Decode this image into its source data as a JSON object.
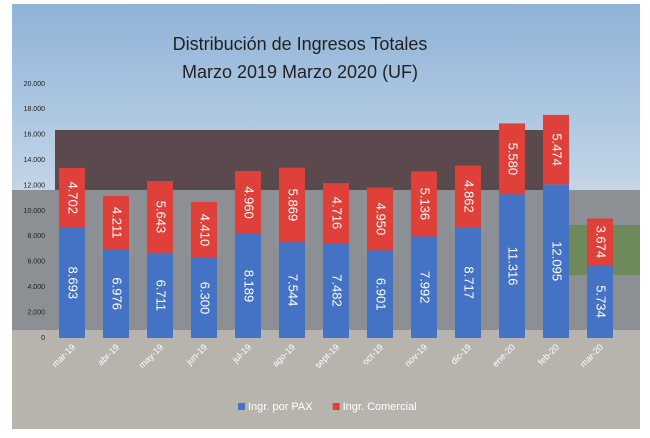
{
  "chart_data": {
    "type": "bar",
    "stacked": true,
    "title": "Distribución de Ingresos Totales",
    "subtitle": "Marzo 2019 Marzo 2020 (UF)",
    "categories": [
      "mar-19",
      "abr-19",
      "may-19",
      "jun-19",
      "jul-19",
      "ago-19",
      "sept-19",
      "oct-19",
      "nov-19",
      "dic-19",
      "ene-20",
      "feb-20",
      "mar-20"
    ],
    "series": [
      {
        "name": "Ingr. por PAX",
        "color": "#4472c4",
        "values": [
          8693,
          6976,
          6711,
          6300,
          8189,
          7544,
          7482,
          6901,
          7992,
          8717,
          11316,
          12095,
          5734
        ],
        "value_labels": [
          "8.693",
          "6.976",
          "6.711",
          "6.300",
          "8.189",
          "7.544",
          "7.482",
          "6.901",
          "7.992",
          "8.717",
          "11.316",
          "12.095",
          "5.734"
        ]
      },
      {
        "name": "Ingr. Comercial",
        "color": "#e0403a",
        "values": [
          4702,
          4211,
          5643,
          4410,
          4960,
          5869,
          4716,
          4950,
          5136,
          4862,
          5580,
          5474,
          3674
        ],
        "value_labels": [
          "4.702",
          "4.211",
          "5.643",
          "4.410",
          "4.960",
          "5.869",
          "4.716",
          "4.950",
          "5.136",
          "4.862",
          "5.580",
          "5.474",
          "3.674"
        ]
      }
    ],
    "ylim": [
      0,
      20000
    ],
    "yticks": [
      {
        "value": 0,
        "label": "0"
      },
      {
        "value": 2000,
        "label": "2.000"
      },
      {
        "value": 4000,
        "label": "4.000"
      },
      {
        "value": 6000,
        "label": "6.000"
      },
      {
        "value": 8000,
        "label": "8.000"
      },
      {
        "value": 10000,
        "label": "10.000"
      },
      {
        "value": 12000,
        "label": "12.000"
      },
      {
        "value": 14000,
        "label": "14.000"
      },
      {
        "value": 16000,
        "label": "16.000"
      },
      {
        "value": 18000,
        "label": "18.000"
      },
      {
        "value": 20000,
        "label": "20.000"
      }
    ],
    "grid": false,
    "legend": "bottom"
  }
}
